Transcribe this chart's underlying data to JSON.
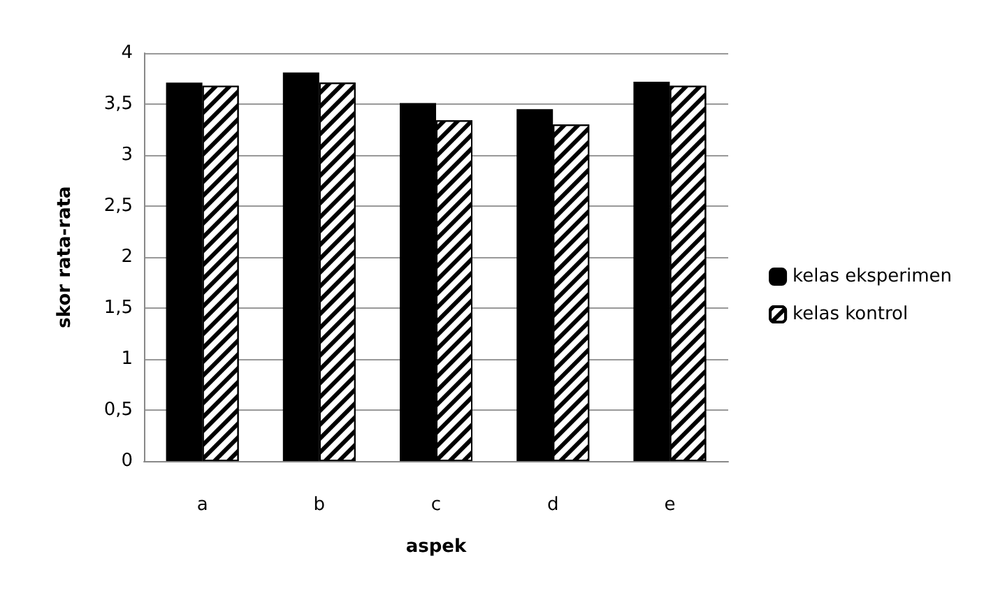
{
  "chart_data": {
    "type": "bar",
    "xlabel": "aspek",
    "ylabel": "skor rata-rata",
    "categories": [
      "a",
      "b",
      "c",
      "d",
      "e"
    ],
    "series": [
      {
        "name": "kelas eksperimen",
        "color": "#000000",
        "values": [
          3.71,
          3.81,
          3.51,
          3.45,
          3.72
        ]
      },
      {
        "name": "kelas kontrol",
        "color": "#ffffff",
        "values": [
          3.68,
          3.71,
          3.34,
          3.3,
          3.68
        ]
      }
    ],
    "ylim": [
      0,
      4
    ],
    "yticks": [
      0,
      {
        "value": 0.5,
        "label": "0,5"
      },
      1,
      {
        "value": 1.5,
        "label": "1,5"
      },
      2,
      {
        "value": 2.5,
        "label": "2,5"
      },
      3,
      {
        "value": 3.5,
        "label": "3,5"
      },
      4
    ],
    "grid": "y",
    "legend": "right"
  }
}
